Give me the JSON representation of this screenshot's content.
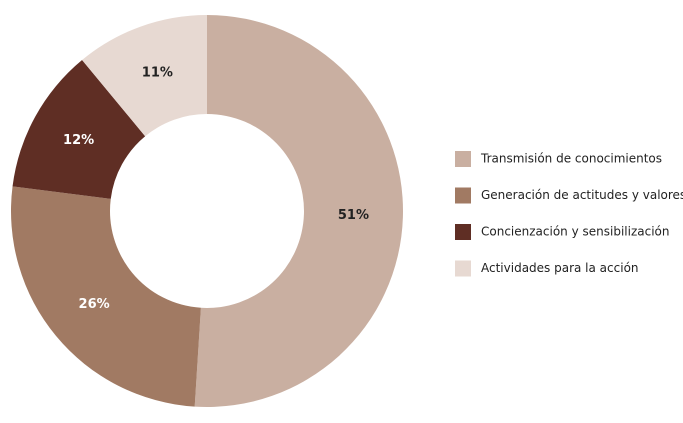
{
  "chart_data": {
    "type": "donut",
    "categories": [
      "Transmisión de conocimientos",
      "Generación de actitudes y valores",
      "Concienzación y sensibilización",
      "Actividades para la acción"
    ],
    "values": [
      51,
      26,
      12,
      11
    ],
    "value_labels": [
      "51%",
      "26%",
      "12%",
      "11%"
    ],
    "colors": [
      "#c9afa1",
      "#a17a63",
      "#5f2e24",
      "#e7d9d2"
    ],
    "legend": "right"
  }
}
